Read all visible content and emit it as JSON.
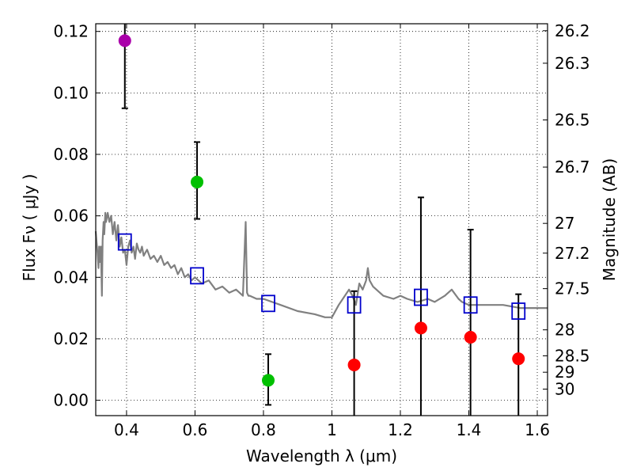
{
  "chart_data": {
    "type": "scatter",
    "title": "",
    "xlabel": "Wavelength  λ (μm)",
    "ylabel": "Flux  Fν  ( μJy )",
    "y2label": "Magnitude (AB)",
    "xlim": [
      0.31,
      1.63
    ],
    "ylim": [
      -0.005,
      0.1225
    ],
    "grid": true,
    "xticks": [
      0.4,
      0.6,
      0.8,
      1.0,
      1.2,
      1.4,
      1.6
    ],
    "xtick_labels": [
      "0.4",
      "0.6",
      "0.8",
      "1",
      "1.2",
      "1.4",
      "1.6"
    ],
    "yticks": [
      0.0,
      0.02,
      0.04,
      0.06,
      0.08,
      0.1,
      0.12
    ],
    "ytick_labels": [
      "0.00",
      "0.02",
      "0.04",
      "0.06",
      "0.08",
      "0.10",
      "0.12"
    ],
    "y2ticks": [
      {
        "label": "26.2",
        "mag": 26.2
      },
      {
        "label": "26.3",
        "mag": 26.3
      },
      {
        "label": "26.5",
        "mag": 26.5
      },
      {
        "label": "26.7",
        "mag": 26.7
      },
      {
        "label": "27",
        "mag": 27.0
      },
      {
        "label": "27.2",
        "mag": 27.2
      },
      {
        "label": "27.5",
        "mag": 27.5
      },
      {
        "label": "28",
        "mag": 28.0
      },
      {
        "label": "28.5",
        "mag": 28.5
      },
      {
        "label": "29",
        "mag": 29.0
      },
      {
        "label": "30",
        "mag": 30.0
      }
    ],
    "colors": {
      "purple": "#aa00aa",
      "green": "#00c000",
      "red": "#ff0000",
      "model_box": "#0000cc",
      "sed": "#808080",
      "errorbar": "#000000"
    },
    "series": [
      {
        "name": "purple points",
        "color": "purple",
        "points": [
          {
            "x": 0.395,
            "y": 0.117,
            "ylo": 0.095,
            "yhi": 0.1225
          }
        ]
      },
      {
        "name": "green points",
        "color": "green",
        "points": [
          {
            "x": 0.606,
            "y": 0.071,
            "ylo": 0.059,
            "yhi": 0.084
          },
          {
            "x": 0.814,
            "y": 0.0065,
            "ylo": -0.0015,
            "yhi": 0.015
          }
        ]
      },
      {
        "name": "red points",
        "color": "red",
        "points": [
          {
            "x": 1.065,
            "y": 0.0115,
            "ylo": -0.005,
            "yhi": 0.0355
          },
          {
            "x": 1.26,
            "y": 0.0235,
            "ylo": -0.005,
            "yhi": 0.066
          },
          {
            "x": 1.405,
            "y": 0.0205,
            "ylo": -0.005,
            "yhi": 0.0555
          },
          {
            "x": 1.545,
            "y": 0.0135,
            "ylo": -0.005,
            "yhi": 0.0345
          }
        ]
      },
      {
        "name": "model band fluxes",
        "color": "model_box",
        "marker": "square",
        "points": [
          {
            "x": 0.395,
            "y": 0.0515
          },
          {
            "x": 0.606,
            "y": 0.0405
          },
          {
            "x": 0.814,
            "y": 0.0315
          },
          {
            "x": 1.065,
            "y": 0.031
          },
          {
            "x": 1.26,
            "y": 0.0335
          },
          {
            "x": 1.405,
            "y": 0.031
          },
          {
            "x": 1.545,
            "y": 0.029
          }
        ]
      }
    ],
    "sed_curve": {
      "color": "sed",
      "x": [
        0.31,
        0.315,
        0.318,
        0.32,
        0.322,
        0.325,
        0.328,
        0.33,
        0.333,
        0.335,
        0.338,
        0.34,
        0.345,
        0.35,
        0.355,
        0.36,
        0.365,
        0.37,
        0.375,
        0.38,
        0.385,
        0.39,
        0.395,
        0.4,
        0.405,
        0.41,
        0.415,
        0.42,
        0.425,
        0.43,
        0.435,
        0.44,
        0.445,
        0.45,
        0.455,
        0.46,
        0.47,
        0.48,
        0.49,
        0.5,
        0.51,
        0.52,
        0.53,
        0.54,
        0.55,
        0.56,
        0.57,
        0.58,
        0.59,
        0.6,
        0.62,
        0.64,
        0.66,
        0.68,
        0.7,
        0.72,
        0.74,
        0.748,
        0.752,
        0.756,
        0.76,
        0.78,
        0.8,
        0.85,
        0.9,
        0.95,
        0.98,
        1.0,
        1.02,
        1.05,
        1.06,
        1.07,
        1.08,
        1.09,
        1.1,
        1.105,
        1.11,
        1.12,
        1.15,
        1.18,
        1.2,
        1.22,
        1.25,
        1.28,
        1.3,
        1.33,
        1.35,
        1.37,
        1.38,
        1.4,
        1.42,
        1.45,
        1.5,
        1.55,
        1.6,
        1.63
      ],
      "y": [
        0.055,
        0.048,
        0.043,
        0.05,
        0.045,
        0.05,
        0.034,
        0.052,
        0.058,
        0.054,
        0.061,
        0.058,
        0.061,
        0.058,
        0.06,
        0.054,
        0.058,
        0.052,
        0.057,
        0.05,
        0.053,
        0.048,
        0.049,
        0.044,
        0.05,
        0.052,
        0.048,
        0.05,
        0.046,
        0.051,
        0.049,
        0.048,
        0.05,
        0.047,
        0.048,
        0.049,
        0.046,
        0.047,
        0.045,
        0.047,
        0.044,
        0.045,
        0.043,
        0.044,
        0.041,
        0.043,
        0.04,
        0.041,
        0.039,
        0.04,
        0.038,
        0.039,
        0.036,
        0.037,
        0.035,
        0.036,
        0.034,
        0.058,
        0.035,
        0.034,
        0.034,
        0.033,
        0.033,
        0.031,
        0.029,
        0.028,
        0.027,
        0.027,
        0.031,
        0.036,
        0.034,
        0.031,
        0.038,
        0.036,
        0.039,
        0.043,
        0.039,
        0.037,
        0.034,
        0.033,
        0.034,
        0.033,
        0.032,
        0.033,
        0.032,
        0.034,
        0.036,
        0.033,
        0.032,
        0.031,
        0.031,
        0.031,
        0.031,
        0.03,
        0.03,
        0.03
      ]
    }
  }
}
